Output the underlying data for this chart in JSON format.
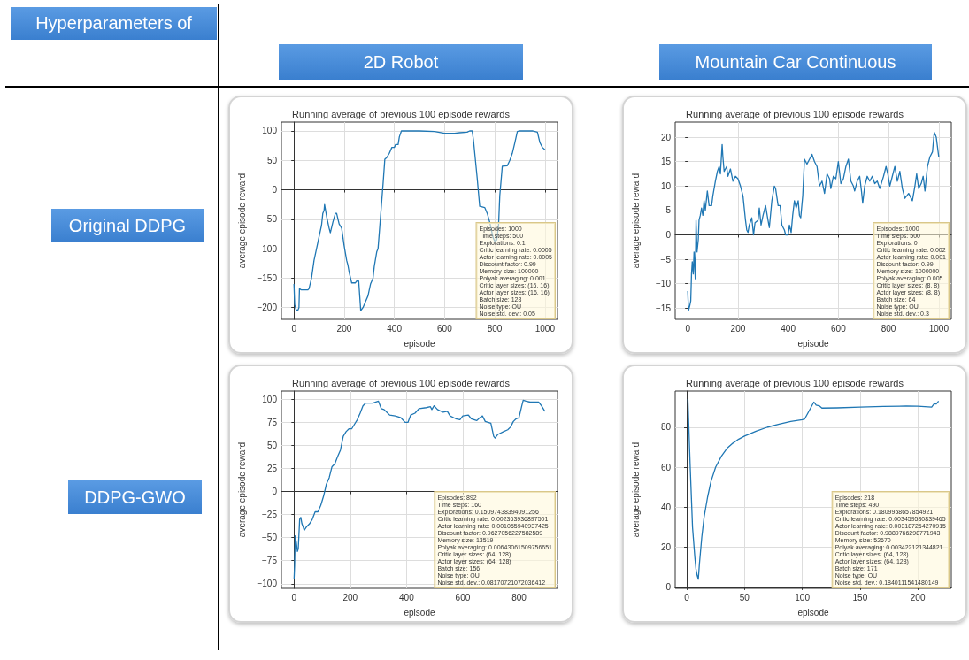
{
  "chart_data": [
    {
      "type": "other",
      "annotations": [
        "Hyperparameters of",
        "2D Robot",
        "Mountain Car Continuous",
        "Original DDPG",
        "DDPG-GWO"
      ]
    },
    {
      "type": "line",
      "title": "Running average of previous 100 episode rewards",
      "xlabel": "episode",
      "ylabel": "average episode reward",
      "color": "#1f77b4",
      "line_style": "solid",
      "grid": true,
      "xlim": [
        -50,
        1050
      ],
      "ylim": [
        -220,
        115
      ],
      "xticks": [
        0,
        200,
        400,
        600,
        800,
        1000
      ],
      "yticks": [
        -200,
        -150,
        -100,
        -50,
        0,
        50,
        100
      ],
      "x": [
        0,
        3,
        8,
        15,
        20,
        22,
        30,
        55,
        60,
        70,
        80,
        95,
        110,
        115,
        120,
        122,
        130,
        140,
        145,
        155,
        165,
        170,
        180,
        190,
        200,
        210,
        215,
        220,
        230,
        245,
        250,
        258,
        262,
        266,
        275,
        285,
        295,
        305,
        315,
        320,
        330,
        335,
        345,
        355,
        362,
        370,
        380,
        390,
        400,
        405,
        415,
        420,
        428,
        500,
        560,
        600,
        640,
        660,
        690,
        700,
        710,
        715,
        730,
        740,
        760,
        770,
        780,
        790,
        795,
        800,
        808,
        815,
        820,
        830,
        850,
        860,
        870,
        880,
        890,
        900,
        950,
        970,
        980,
        990,
        1000
      ],
      "values": [
        -160,
        -195,
        -203,
        -205,
        -200,
        -168,
        -170,
        -170,
        -168,
        -150,
        -120,
        -90,
        -60,
        -40,
        -35,
        -25,
        -45,
        -65,
        -73,
        -55,
        -40,
        -40,
        -58,
        -65,
        -95,
        -120,
        -128,
        -140,
        -158,
        -158,
        -155,
        -155,
        -180,
        -205,
        -200,
        -190,
        -180,
        -160,
        -150,
        -130,
        -105,
        -100,
        -45,
        10,
        52,
        55,
        62,
        72,
        72,
        77,
        77,
        90,
        100,
        100,
        99,
        96,
        96,
        97,
        98,
        100,
        100,
        85,
        20,
        -28,
        -30,
        -40,
        -55,
        -75,
        -83,
        -87,
        -85,
        -62,
        -10,
        40,
        41,
        50,
        62,
        80,
        99,
        100,
        100,
        98,
        80,
        72,
        68
      ],
      "annotations": [
        "Episodes: 1000",
        "Time steps: 500",
        "Explorations: 0.1",
        "Critic learning rate: 0.0005",
        "Actor learning rate: 0.0005",
        "Discount factor: 0.99",
        "Memory size: 100000",
        "Polyak averaging: 0.001",
        "Critic layer sizes: (16, 16)",
        "Actor layer sizes: (16, 16)",
        "Batch size: 128",
        "Noise type: OU",
        "Noise std. dev.: 0.05"
      ]
    },
    {
      "type": "line",
      "title": "Running average of previous 100 episode rewards",
      "xlabel": "episode",
      "ylabel": "average episode reward",
      "color": "#1f77b4",
      "line_style": "solid",
      "grid": true,
      "xlim": [
        -50,
        1050
      ],
      "ylim": [
        -17.3,
        23.1
      ],
      "xticks": [
        0,
        200,
        400,
        600,
        800,
        1000
      ],
      "yticks": [
        -15,
        -10,
        -5,
        0,
        5,
        10,
        15,
        20
      ],
      "x": [
        0,
        3,
        8,
        12,
        15,
        18,
        22,
        25,
        30,
        33,
        37,
        42,
        45,
        50,
        55,
        60,
        65,
        70,
        78,
        85,
        95,
        100,
        110,
        118,
        125,
        130,
        137,
        140,
        145,
        155,
        160,
        170,
        180,
        190,
        200,
        210,
        220,
        230,
        235,
        240,
        245,
        255,
        262,
        268,
        280,
        285,
        292,
        300,
        310,
        318,
        325,
        335,
        345,
        350,
        360,
        368,
        375,
        385,
        390,
        400,
        405,
        412,
        418,
        425,
        432,
        440,
        445,
        450,
        458,
        465,
        475,
        485,
        495,
        505,
        515,
        525,
        535,
        545,
        555,
        565,
        570,
        580,
        590,
        600,
        610,
        620,
        630,
        640,
        650,
        660,
        665,
        675,
        685,
        692,
        697,
        705,
        715,
        725,
        735,
        745,
        755,
        765,
        780,
        790,
        797,
        805,
        815,
        825,
        835,
        845,
        855,
        865,
        880,
        890,
        895,
        905,
        912,
        920,
        930,
        938,
        945,
        955,
        965,
        975,
        982,
        990,
        1000
      ],
      "values": [
        -11.5,
        -15.5,
        -14.5,
        -13.5,
        -8,
        -5.5,
        -8,
        -3.5,
        -9,
        3,
        -3.5,
        -1,
        3,
        4,
        5.5,
        4,
        7,
        5,
        9,
        6,
        6,
        8,
        11,
        13,
        14,
        12.5,
        18.5,
        16,
        13,
        14,
        12,
        13.5,
        11,
        12,
        11.5,
        10,
        8,
        3,
        1,
        0.5,
        2,
        3.5,
        0,
        2.5,
        3,
        5.5,
        2,
        4,
        6,
        3.5,
        1.5,
        7,
        10,
        9.5,
        6,
        6,
        2,
        1,
        0,
        0,
        2,
        0.5,
        4,
        7,
        5.5,
        7,
        4,
        3.5,
        8,
        15.5,
        14.5,
        15.5,
        16.5,
        15,
        14,
        10,
        11,
        8.5,
        12.5,
        11.5,
        9.5,
        12,
        11.5,
        15,
        10.5,
        11.5,
        14,
        15.5,
        11,
        10,
        9,
        11,
        12,
        9,
        6.5,
        10,
        12,
        11,
        12,
        10.5,
        11,
        9.5,
        12,
        14,
        12.5,
        10,
        12,
        14,
        11,
        13,
        9.5,
        7.5,
        8.5,
        7.5,
        7,
        10,
        12.5,
        9.5,
        10.5,
        12,
        9,
        14,
        16,
        17,
        21,
        20,
        16
      ],
      "annotations": [
        "Episodes: 1000",
        "Time steps: 500",
        "Explorations: 0",
        "Critic learning rate: 0.002",
        "Actor learning rate: 0.001",
        "Discount factor: 0.99",
        "Memory size: 1000000",
        "Polyak averaging: 0.005",
        "Critic layer sizes: (8, 8)",
        "Actor layer sizes: (8, 8)",
        "Batch size: 64",
        "Noise type: OU",
        "Noise std. dev.: 0.3"
      ]
    },
    {
      "type": "line",
      "title": "Running average of previous 100 episode rewards",
      "xlabel": "episode",
      "ylabel": "average episode reward",
      "color": "#1f77b4",
      "line_style": "solid",
      "grid": true,
      "xlim": [
        -45,
        937
      ],
      "ylim": [
        -105,
        109
      ],
      "xticks": [
        0,
        200,
        400,
        600,
        800
      ],
      "yticks": [
        -100,
        -75,
        -50,
        -25,
        0,
        25,
        50,
        75,
        100
      ],
      "x": [
        0,
        2,
        4,
        8,
        12,
        15,
        20,
        24,
        28,
        32,
        36,
        45,
        55,
        65,
        75,
        85,
        95,
        105,
        115,
        125,
        135,
        145,
        155,
        165,
        175,
        185,
        195,
        205,
        215,
        225,
        235,
        245,
        255,
        280,
        300,
        310,
        320,
        330,
        340,
        360,
        380,
        395,
        405,
        415,
        430,
        445,
        470,
        485,
        490,
        498,
        510,
        530,
        545,
        555,
        575,
        590,
        600,
        620,
        630,
        650,
        660,
        670,
        680,
        690,
        700,
        710,
        715,
        725,
        745,
        760,
        770,
        780,
        790,
        800,
        810,
        815,
        825,
        840,
        870,
        880,
        892
      ],
      "values": [
        -95,
        -80,
        -48,
        -55,
        -65,
        -62,
        -30,
        -28,
        -35,
        -38,
        -42,
        -38,
        -35,
        -30,
        -22,
        -22,
        -15,
        -5,
        8,
        15,
        27,
        30,
        38,
        45,
        60,
        65,
        68,
        68,
        73,
        78,
        85,
        93,
        96,
        96,
        98,
        90,
        89,
        86,
        83,
        82,
        80,
        75,
        75,
        83,
        85,
        90,
        91,
        92,
        89,
        93,
        89,
        86,
        87,
        82,
        79,
        78,
        82,
        83,
        79,
        77,
        80,
        82,
        76,
        75,
        74,
        60,
        58,
        62,
        65,
        67,
        70,
        76,
        79,
        80,
        93,
        99,
        98,
        97,
        97,
        93,
        87
      ],
      "annotations": [
        "Episodes: 892",
        "Time steps: 160",
        "Explorations: 0.15097438394091256",
        "Critic learning rate: 0.002363936897501",
        "Actor learning rate: 0.001055940937425",
        "Discount factor: 0.9627056227582589",
        "Memory size: 13519",
        "Polyak averaging: 0.00643061509756651",
        "Critic layer sizes: (64, 128)",
        "Actor layer sizes: (64, 128)",
        "Batch size: 156",
        "Noise type: OU",
        "Noise std. dev.: 0.08170721072036412"
      ]
    },
    {
      "type": "line",
      "title": "Running average of previous 100 episode rewards",
      "xlabel": "episode",
      "ylabel": "average episode reward",
      "color": "#1f77b4",
      "line_style": "solid",
      "grid": true,
      "xlim": [
        -10,
        229
      ],
      "ylim": [
        -0.5,
        98
      ],
      "xticks": [
        0,
        50,
        100,
        150,
        200
      ],
      "yticks": [
        0,
        20,
        40,
        60,
        80
      ],
      "x": [
        1,
        3,
        5,
        7,
        8,
        9,
        10,
        11,
        13,
        15,
        18,
        21,
        25,
        30,
        35,
        40,
        45,
        50,
        60,
        70,
        80,
        90,
        100,
        102,
        110,
        112,
        115,
        117,
        130,
        150,
        170,
        190,
        200,
        212,
        214,
        216,
        218
      ],
      "values": [
        94,
        60,
        30,
        15,
        9,
        6,
        4,
        12,
        25,
        35,
        45,
        53,
        60,
        65.5,
        69.5,
        72,
        74,
        75.5,
        78,
        80,
        81.5,
        82.8,
        83.7,
        84,
        92.5,
        91,
        90.5,
        89.5,
        89.6,
        90,
        90.3,
        90.5,
        90.4,
        90,
        91.5,
        91.5,
        93
      ],
      "annotations": [
        "Episodes: 218",
        "Time steps: 490",
        "Explorations: 0.1809958657854921",
        "Critic learning rate: 0.003459580839465",
        "Actor learning rate: 0.003187254270915",
        "Discount factor: 0.9889766298771943",
        "Memory size: 52670",
        "Polyak averaging: 0.003422121344821",
        "Critic layer sizes: (64, 128)",
        "Actor layer sizes: (64, 128)",
        "Batch size: 171",
        "Noise type: OU",
        "Noise std. dev.: 0.1840111541480149"
      ]
    }
  ]
}
